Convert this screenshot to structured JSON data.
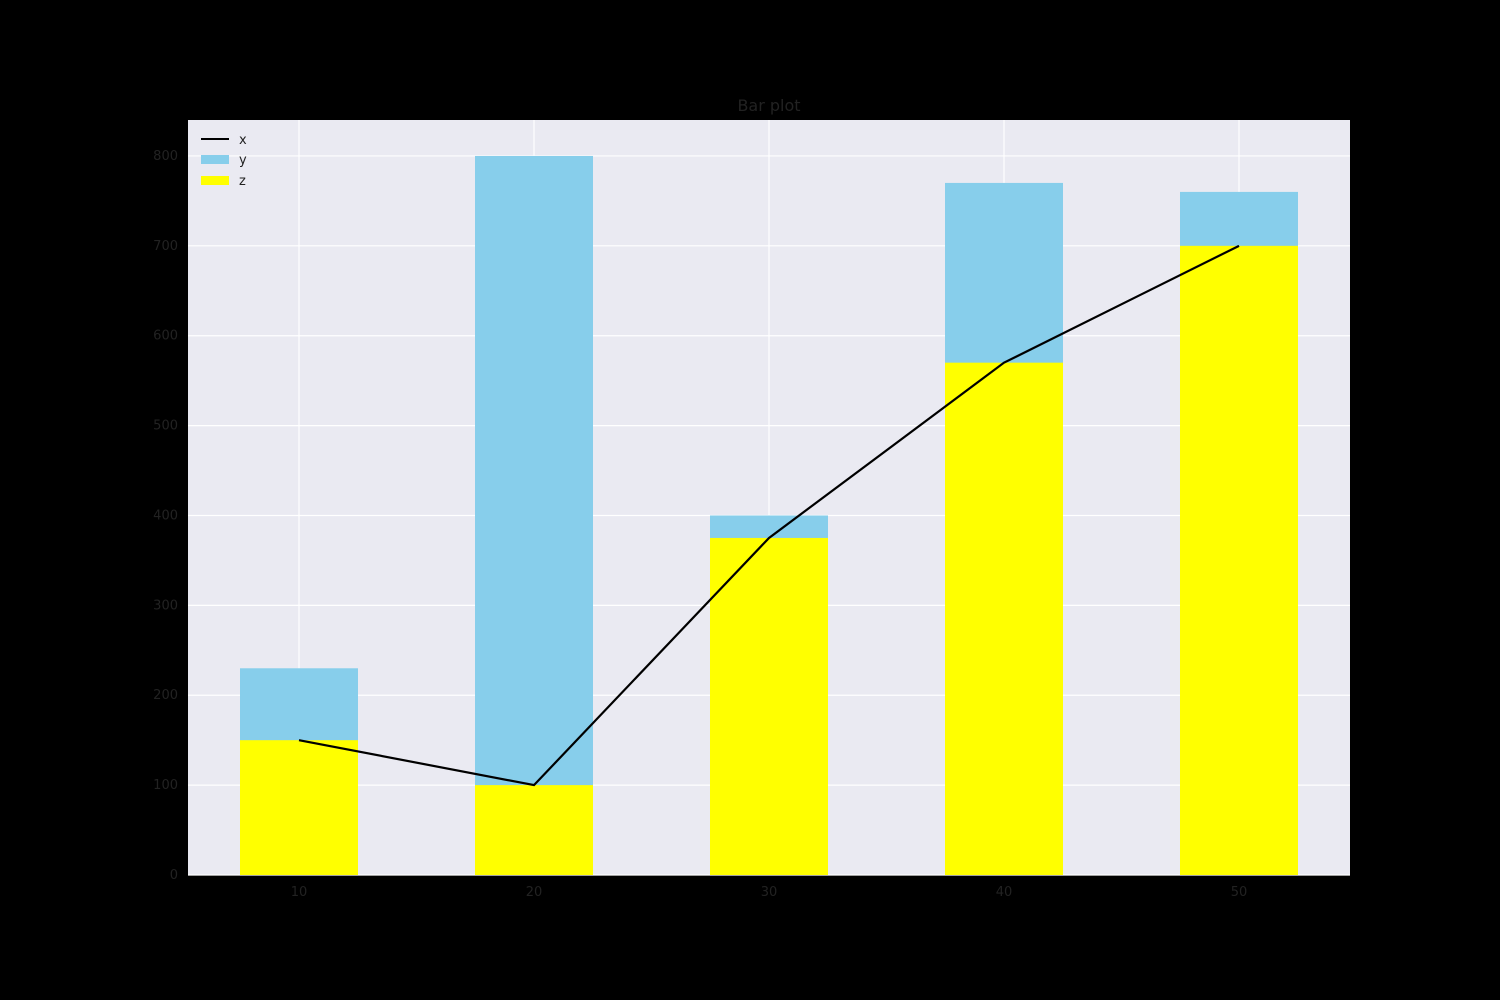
{
  "chart_data": {
    "type": "bar",
    "title": "Bar plot",
    "xlabel": "",
    "ylabel": "",
    "categories": [
      "10",
      "20",
      "30",
      "40",
      "50"
    ],
    "ylim": [
      0,
      840
    ],
    "yticks": [
      0,
      100,
      200,
      300,
      400,
      500,
      600,
      700,
      800
    ],
    "grid": true,
    "legend_position": "top-left",
    "series": [
      {
        "name": "x",
        "kind": "line",
        "color": "#000000",
        "values": [
          150,
          100,
          375,
          570,
          700
        ]
      },
      {
        "name": "y",
        "kind": "bar",
        "color": "#87ceeb",
        "values": [
          230,
          800,
          400,
          770,
          760
        ]
      },
      {
        "name": "z",
        "kind": "bar",
        "color": "#ffff00",
        "values": [
          150,
          100,
          375,
          570,
          700
        ]
      }
    ],
    "colors": {
      "page_background": "#000000",
      "plot_background": "#eaeaf2",
      "grid": "#ffffff",
      "text": "#222222"
    }
  }
}
